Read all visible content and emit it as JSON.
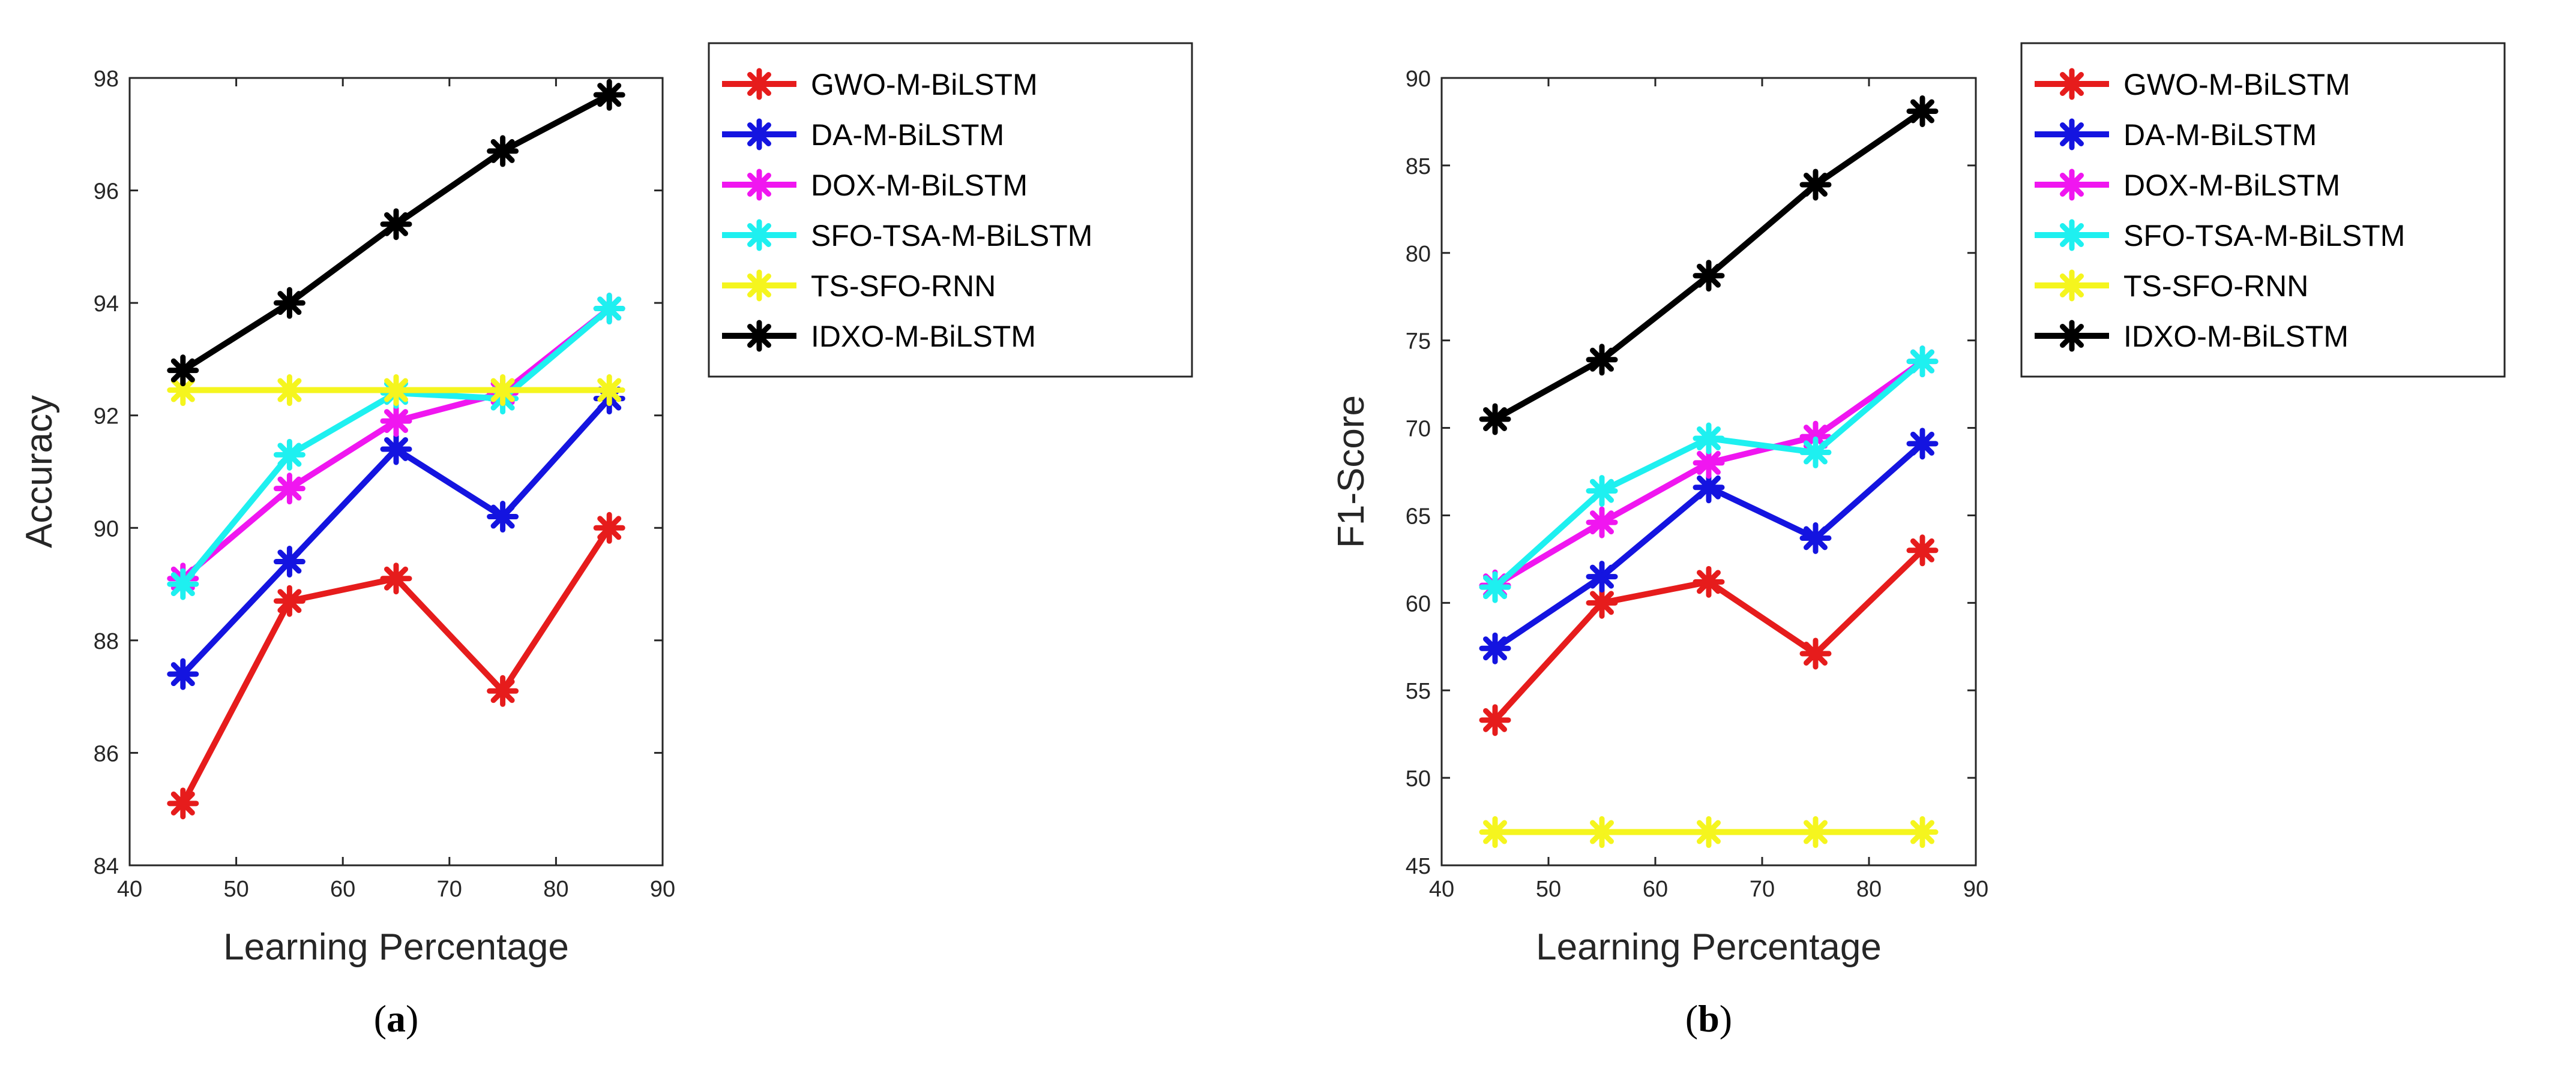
{
  "chart_data": [
    {
      "type": "line",
      "caption": "(a)",
      "caption_open": "(",
      "caption_letter": "a",
      "caption_close": ")",
      "xlabel": "Learning Percentage",
      "ylabel": "Accuracy",
      "xlim": [
        40,
        90
      ],
      "ylim": [
        84,
        98
      ],
      "xticks": [
        40,
        50,
        60,
        70,
        80,
        90
      ],
      "yticks": [
        84,
        86,
        88,
        90,
        92,
        94,
        96,
        98
      ],
      "x": [
        45,
        55,
        65,
        75,
        85
      ],
      "series": [
        {
          "name": "GWO-M-BiLSTM",
          "color": "#e61c1c",
          "values": [
            85.1,
            88.7,
            89.1,
            87.1,
            90.0
          ]
        },
        {
          "name": "DA-M-BiLSTM",
          "color": "#1414e0",
          "values": [
            87.4,
            89.4,
            91.4,
            90.2,
            92.3
          ]
        },
        {
          "name": "DOX-M-BiLSTM",
          "color": "#f016f0",
          "values": [
            89.1,
            90.7,
            91.9,
            92.4,
            93.9
          ]
        },
        {
          "name": "SFO-TSA-M-BiLSTM",
          "color": "#1ef0f0",
          "values": [
            89.0,
            91.3,
            92.4,
            92.3,
            93.9
          ]
        },
        {
          "name": "TS-SFO-RNN",
          "color": "#f5f51e",
          "values": [
            92.45,
            92.45,
            92.45,
            92.45,
            92.45
          ]
        },
        {
          "name": "IDXO-M-BiLSTM",
          "color": "#000000",
          "values": [
            92.8,
            94.0,
            95.4,
            96.7,
            97.7
          ]
        }
      ]
    },
    {
      "type": "line",
      "caption": "(b)",
      "caption_open": "(",
      "caption_letter": "b",
      "caption_close": ")",
      "xlabel": "Learning Percentage",
      "ylabel": "F1-Score",
      "xlim": [
        40,
        90
      ],
      "ylim": [
        45,
        90
      ],
      "xticks": [
        40,
        50,
        60,
        70,
        80,
        90
      ],
      "yticks": [
        45,
        50,
        55,
        60,
        65,
        70,
        75,
        80,
        85,
        90
      ],
      "x": [
        45,
        55,
        65,
        75,
        85
      ],
      "series": [
        {
          "name": "GWO-M-BiLSTM",
          "color": "#e61c1c",
          "values": [
            53.3,
            60.0,
            61.2,
            57.1,
            63.0
          ]
        },
        {
          "name": "DA-M-BiLSTM",
          "color": "#1414e0",
          "values": [
            57.4,
            61.5,
            66.6,
            63.7,
            69.1
          ]
        },
        {
          "name": "DOX-M-BiLSTM",
          "color": "#f016f0",
          "values": [
            61.0,
            64.6,
            68.0,
            69.5,
            73.8
          ]
        },
        {
          "name": "SFO-TSA-M-BiLSTM",
          "color": "#1ef0f0",
          "values": [
            60.9,
            66.4,
            69.4,
            68.6,
            73.8
          ]
        },
        {
          "name": "TS-SFO-RNN",
          "color": "#f5f51e",
          "values": [
            46.9,
            46.9,
            46.9,
            46.9,
            46.9
          ]
        },
        {
          "name": "IDXO-M-BiLSTM",
          "color": "#000000",
          "values": [
            70.5,
            73.9,
            78.7,
            83.9,
            88.1
          ]
        }
      ]
    }
  ]
}
